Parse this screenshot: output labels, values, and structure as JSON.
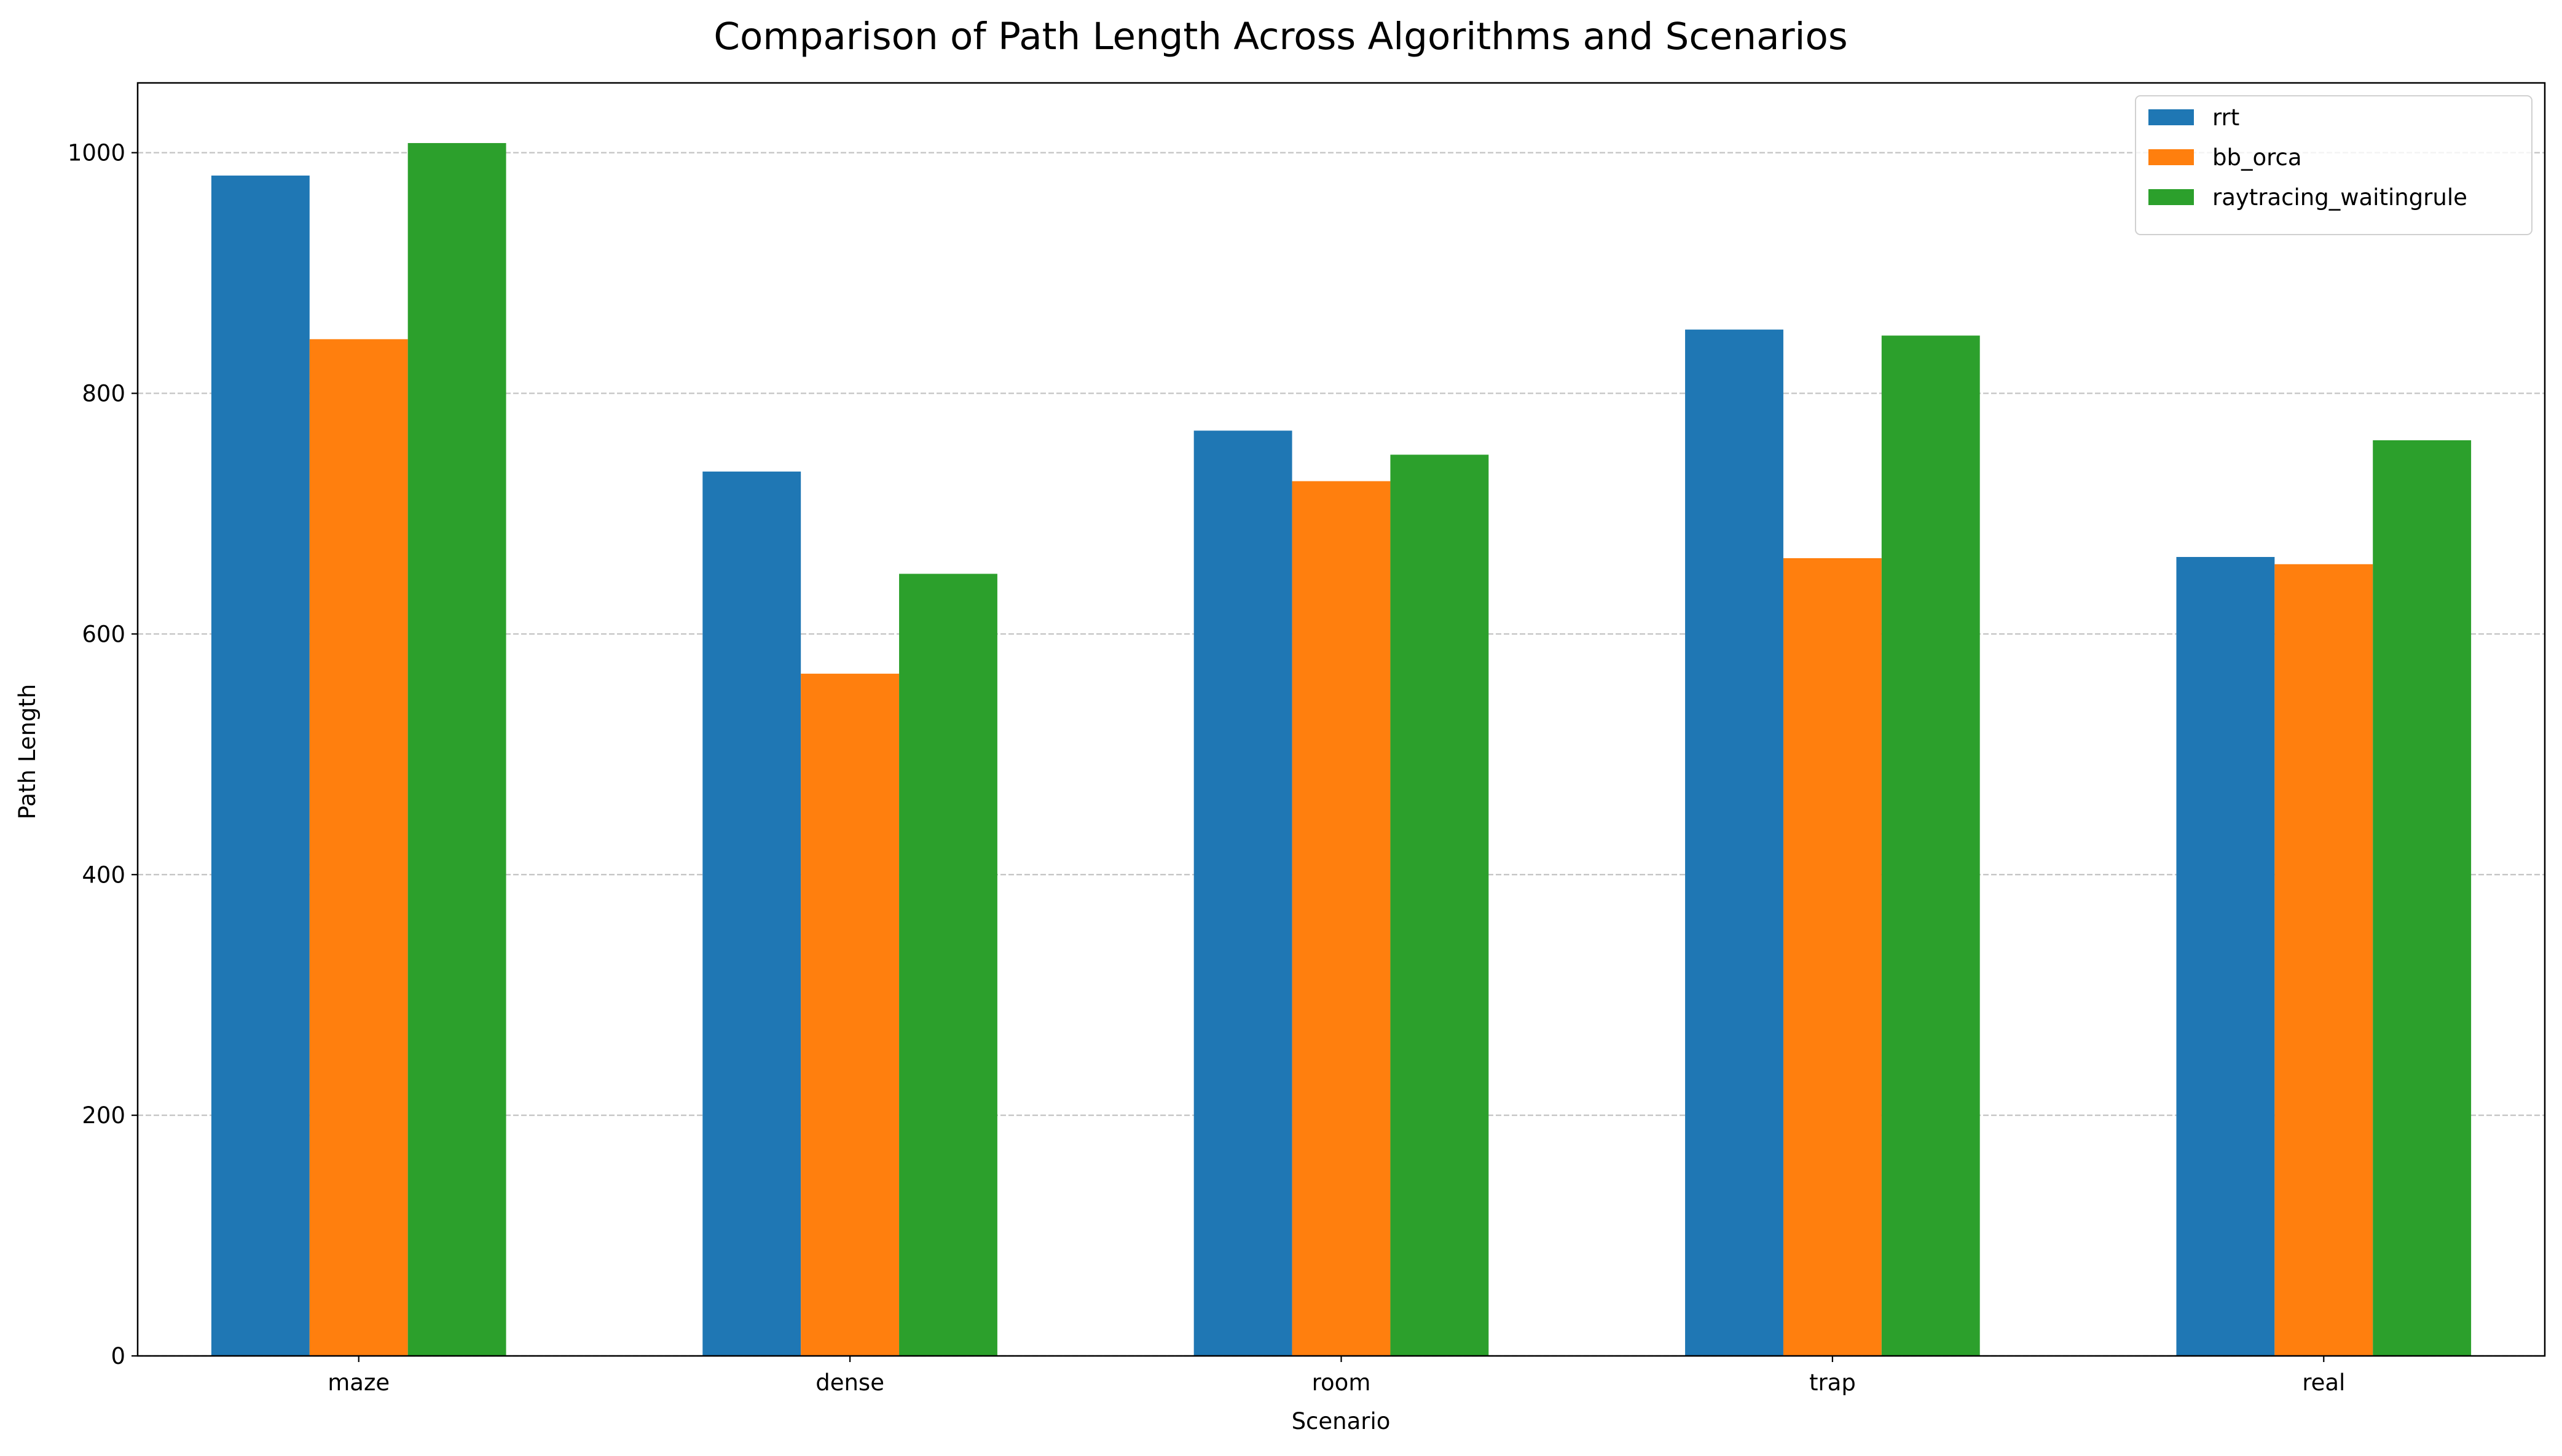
{
  "chart_data": {
    "type": "bar",
    "title": "Comparison of Path Length Across Algorithms and Scenarios",
    "xlabel": "Scenario",
    "ylabel": "Path Length",
    "categories": [
      "maze",
      "dense",
      "room",
      "trap",
      "real"
    ],
    "ylim": [
      0,
      1058
    ],
    "yticks": [
      0,
      200,
      400,
      600,
      800,
      1000
    ],
    "grid": true,
    "grid_axis": "y",
    "grid_style": "dashed",
    "legend_position": "top-right",
    "series": [
      {
        "name": "rrt",
        "color": "#1f77b4",
        "values": [
          981,
          735,
          769,
          853,
          664
        ]
      },
      {
        "name": "bb_orca",
        "color": "#ff7f0e",
        "values": [
          845,
          567,
          727,
          663,
          658
        ]
      },
      {
        "name": "raytracing_waitingrule",
        "color": "#2ca02c",
        "values": [
          1008,
          650,
          749,
          848,
          761
        ]
      }
    ]
  }
}
